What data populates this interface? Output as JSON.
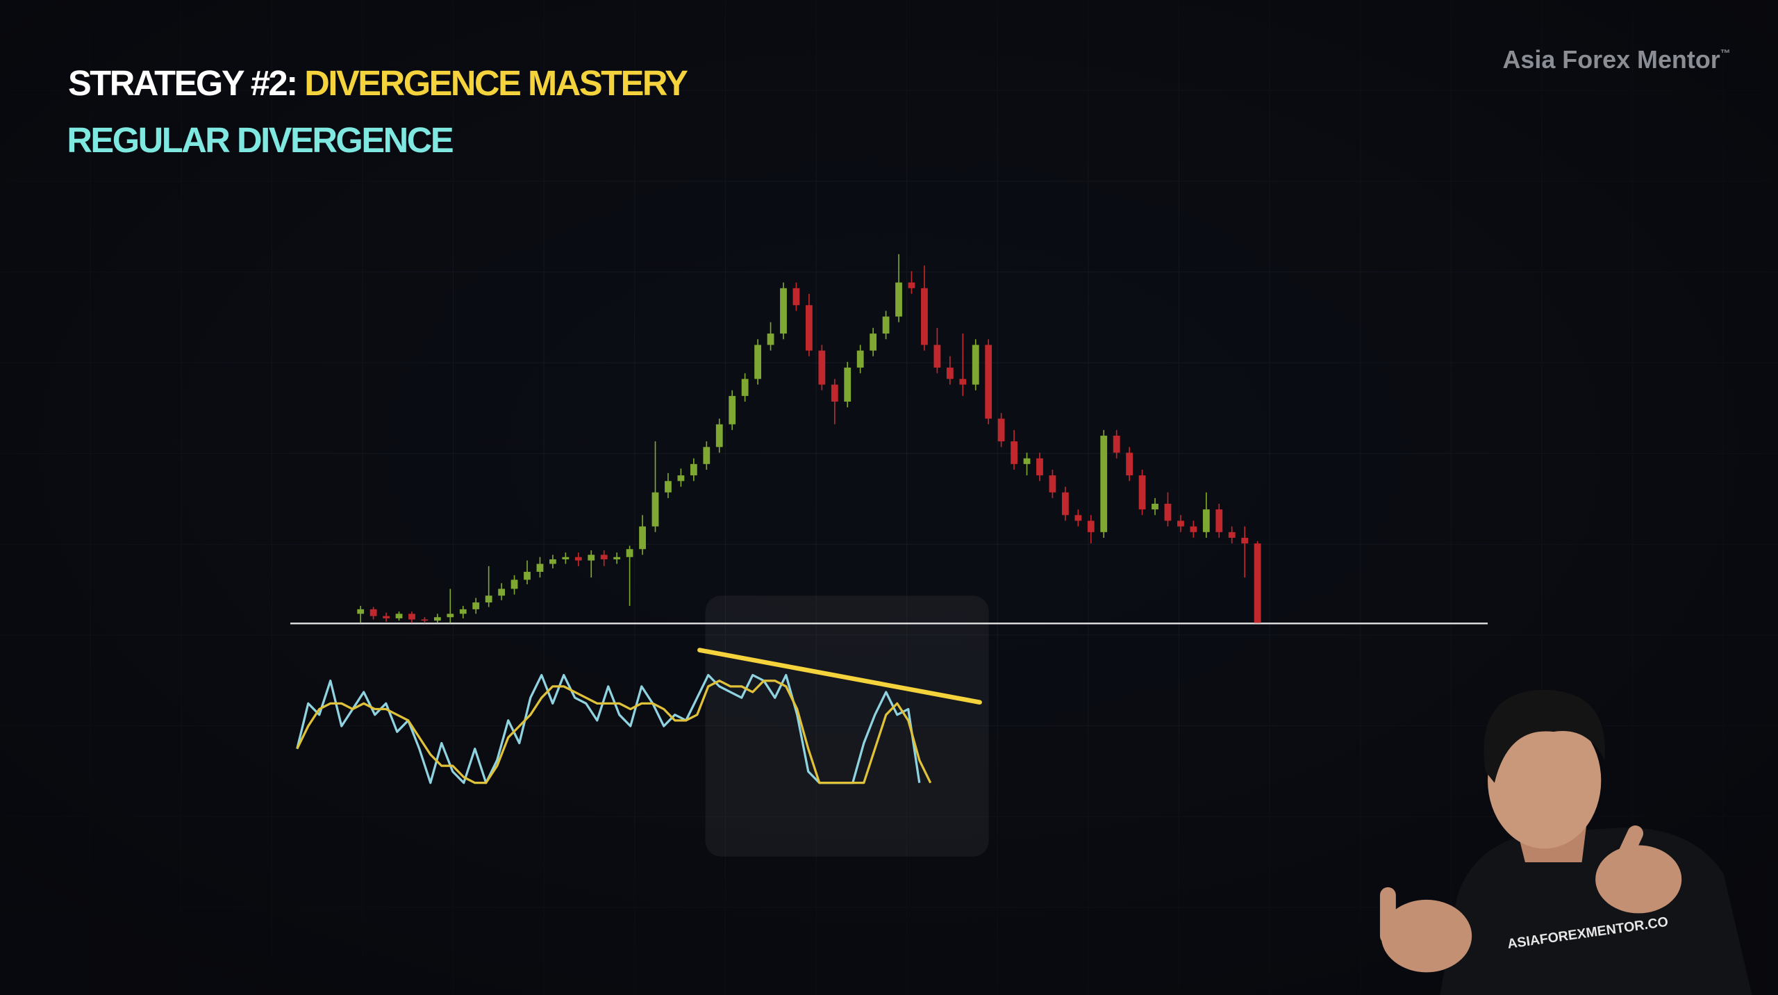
{
  "header": {
    "title_prefix": "STRATEGY #2:",
    "title_highlight": "DIVERGENCE MASTERY",
    "subtitle": "REGULAR DIVERGENCE"
  },
  "logo": {
    "name": "Asia Forex Mentor",
    "trademark": "™"
  },
  "shirt_text": "ASIAFOREXMENTOR.CO",
  "chart_data": [
    {
      "type": "candlestick",
      "up_color": "#7fa832",
      "down_color": "#c0282d",
      "ylim": [
        0,
        330
      ],
      "ohlc": [
        [
          8,
          15,
          0,
          12
        ],
        [
          12,
          14,
          3,
          6
        ],
        [
          6,
          9,
          1,
          4
        ],
        [
          4,
          10,
          2,
          8
        ],
        [
          8,
          10,
          0,
          3
        ],
        [
          3,
          5,
          0,
          2
        ],
        [
          2,
          8,
          0,
          5
        ],
        [
          5,
          30,
          0,
          8
        ],
        [
          8,
          15,
          4,
          12
        ],
        [
          12,
          22,
          8,
          18
        ],
        [
          18,
          50,
          14,
          24
        ],
        [
          24,
          35,
          20,
          30
        ],
        [
          30,
          42,
          25,
          38
        ],
        [
          38,
          55,
          34,
          45
        ],
        [
          45,
          58,
          40,
          52
        ],
        [
          52,
          60,
          48,
          56
        ],
        [
          56,
          62,
          52,
          58
        ],
        [
          58,
          62,
          50,
          55
        ],
        [
          55,
          64,
          40,
          60
        ],
        [
          60,
          64,
          50,
          56
        ],
        [
          56,
          62,
          52,
          58
        ],
        [
          58,
          68,
          15,
          65
        ],
        [
          65,
          95,
          60,
          85
        ],
        [
          85,
          160,
          80,
          115
        ],
        [
          115,
          132,
          110,
          125
        ],
        [
          125,
          136,
          120,
          130
        ],
        [
          130,
          145,
          125,
          140
        ],
        [
          140,
          160,
          135,
          155
        ],
        [
          155,
          180,
          150,
          175
        ],
        [
          175,
          205,
          170,
          200
        ],
        [
          200,
          220,
          195,
          215
        ],
        [
          215,
          250,
          210,
          245
        ],
        [
          245,
          265,
          240,
          255
        ],
        [
          255,
          300,
          250,
          295
        ],
        [
          295,
          300,
          275,
          280
        ],
        [
          280,
          290,
          235,
          240
        ],
        [
          240,
          245,
          205,
          210
        ],
        [
          210,
          215,
          175,
          195
        ],
        [
          195,
          230,
          190,
          225
        ],
        [
          225,
          245,
          220,
          240
        ],
        [
          240,
          260,
          235,
          255
        ],
        [
          255,
          275,
          250,
          270
        ],
        [
          270,
          325,
          265,
          300
        ],
        [
          300,
          310,
          290,
          295
        ],
        [
          295,
          315,
          240,
          245
        ],
        [
          245,
          260,
          220,
          225
        ],
        [
          225,
          235,
          210,
          215
        ],
        [
          215,
          255,
          200,
          210
        ],
        [
          210,
          250,
          205,
          245
        ],
        [
          245,
          250,
          175,
          180
        ],
        [
          180,
          185,
          155,
          160
        ],
        [
          160,
          170,
          135,
          140
        ],
        [
          140,
          150,
          130,
          145
        ],
        [
          145,
          150,
          125,
          130
        ],
        [
          130,
          135,
          110,
          115
        ],
        [
          115,
          120,
          90,
          95
        ],
        [
          95,
          100,
          85,
          90
        ],
        [
          90,
          95,
          70,
          80
        ],
        [
          80,
          170,
          75,
          165
        ],
        [
          165,
          170,
          145,
          150
        ],
        [
          150,
          155,
          125,
          130
        ],
        [
          130,
          135,
          95,
          100
        ],
        [
          100,
          110,
          95,
          105
        ],
        [
          105,
          115,
          85,
          90
        ],
        [
          90,
          95,
          80,
          85
        ],
        [
          85,
          90,
          75,
          80
        ],
        [
          80,
          115,
          75,
          100
        ],
        [
          100,
          105,
          75,
          80
        ],
        [
          80,
          85,
          70,
          75
        ],
        [
          75,
          85,
          40,
          70
        ],
        [
          70,
          72,
          0,
          0
        ]
      ]
    },
    {
      "type": "line",
      "ylim": [
        0,
        100
      ],
      "series": [
        {
          "color": "#8fd3e0",
          "values": [
            30,
            70,
            60,
            90,
            50,
            65,
            80,
            60,
            70,
            45,
            55,
            30,
            0,
            35,
            10,
            0,
            30,
            0,
            20,
            55,
            35,
            75,
            95,
            70,
            95,
            75,
            70,
            55,
            85,
            60,
            50,
            85,
            70,
            50,
            60,
            55,
            75,
            95,
            85,
            80,
            75,
            95,
            90,
            75,
            95,
            60,
            10,
            0,
            0,
            0,
            0,
            35,
            60,
            80,
            60,
            65,
            0,
            null
          ]
        },
        {
          "color": "#e0c23a",
          "values": [
            30,
            50,
            65,
            70,
            70,
            65,
            70,
            65,
            65,
            60,
            55,
            40,
            25,
            15,
            15,
            5,
            0,
            0,
            15,
            40,
            50,
            60,
            75,
            85,
            85,
            80,
            75,
            70,
            70,
            70,
            65,
            70,
            70,
            65,
            55,
            55,
            60,
            85,
            90,
            85,
            85,
            80,
            90,
            90,
            85,
            65,
            30,
            0,
            0,
            0,
            0,
            0,
            30,
            60,
            70,
            55,
            20,
            0
          ]
        }
      ]
    }
  ]
}
